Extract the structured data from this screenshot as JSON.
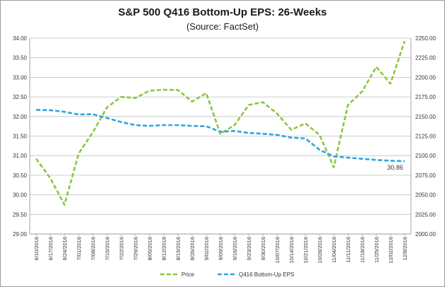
{
  "chart_data": {
    "type": "line",
    "title": "S&P 500 Q416 Bottom-Up EPS: 26-Weeks",
    "subtitle": "(Source: FactSet)",
    "x": [
      "6/10/2016",
      "6/17/2016",
      "6/24/2016",
      "7/01/2016",
      "7/08/2016",
      "7/15/2016",
      "7/22/2016",
      "7/29/2016",
      "8/05/2016",
      "8/12/2016",
      "8/19/2016",
      "8/26/2016",
      "9/02/2016",
      "9/09/2016",
      "9/16/2016",
      "9/23/2016",
      "9/30/2016",
      "10/07/2016",
      "10/14/2016",
      "10/21/2016",
      "10/28/2016",
      "11/04/2016",
      "11/11/2016",
      "11/18/2016",
      "11/25/2016",
      "12/02/2016",
      "12/8/2016"
    ],
    "left_axis": {
      "min": 29.0,
      "max": 34.0,
      "step": 0.5,
      "ticks": [
        "29.00",
        "29.50",
        "30.00",
        "30.50",
        "31.00",
        "31.50",
        "32.00",
        "32.50",
        "33.00",
        "33.50",
        "34.00"
      ]
    },
    "right_axis": {
      "min": 2000,
      "max": 2250,
      "step": 25,
      "ticks": [
        "2000.00",
        "2025.00",
        "2050.00",
        "2075.00",
        "2100.00",
        "2125.00",
        "2150.00",
        "2175.00",
        "2200.00",
        "2225.00",
        "2250.00"
      ]
    },
    "series": [
      {
        "name": "Price",
        "axis": "right",
        "color": "#8dc63f",
        "dash": "dashed",
        "values": [
          2096.1,
          2071.2,
          2037.4,
          2102.6,
          2129.9,
          2161.7,
          2175.0,
          2173.6,
          2182.9,
          2184.1,
          2183.9,
          2169.0,
          2179.9,
          2127.8,
          2139.2,
          2164.7,
          2168.3,
          2153.7,
          2133.0,
          2141.2,
          2126.4,
          2085.2,
          2164.5,
          2181.9,
          2213.4,
          2191.9,
          2246.2
        ]
      },
      {
        "name": "Q416 Bottom-Up EPS",
        "axis": "left",
        "color": "#2aa7df",
        "dash": "dashed",
        "values": [
          32.17,
          32.16,
          32.12,
          32.05,
          32.06,
          31.96,
          31.86,
          31.78,
          31.76,
          31.78,
          31.78,
          31.76,
          31.75,
          31.61,
          31.63,
          31.58,
          31.56,
          31.53,
          31.46,
          31.44,
          31.15,
          30.98,
          30.95,
          30.92,
          30.89,
          30.87,
          30.86
        ]
      }
    ],
    "data_label": "30.86",
    "legend": {
      "position": "bottom",
      "items": [
        "Price",
        "Q416 Bottom-Up EPS"
      ]
    },
    "grid": "horizontal"
  }
}
